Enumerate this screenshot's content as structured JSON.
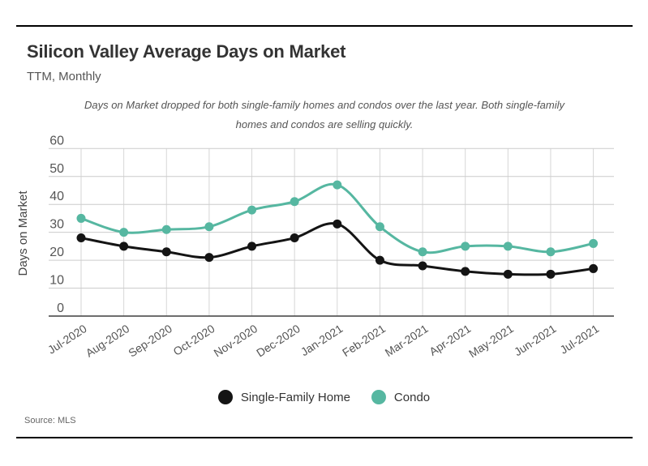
{
  "header": {
    "title": "Silicon Valley Average Days on Market",
    "subtitle": "TTM, Monthly"
  },
  "annotation": {
    "lines": [
      "Days on Market dropped for both single-family homes and condos over the last year. Both single-family",
      "homes and condos are selling quickly."
    ]
  },
  "chart_data": {
    "type": "line",
    "title": "Silicon Valley Average Days on Market",
    "subtitle": "TTM, Monthly",
    "x": [
      "Jul-2020",
      "Aug-2020",
      "Sep-2020",
      "Oct-2020",
      "Nov-2020",
      "Dec-2020",
      "Jan-2021",
      "Feb-2021",
      "Mar-2021",
      "Apr-2021",
      "May-2021",
      "Jun-2021",
      "Jul-2021"
    ],
    "series": [
      {
        "name": "Single-Family Home",
        "color": "#141414",
        "values": [
          28,
          25,
          23,
          21,
          25,
          28,
          33,
          20,
          18,
          16,
          15,
          15,
          17
        ]
      },
      {
        "name": "Condo",
        "color": "#56b7a1",
        "values": [
          35,
          30,
          31,
          32,
          38,
          41,
          47,
          32,
          23,
          25,
          25,
          23,
          26
        ]
      }
    ],
    "xlabel": "",
    "ylabel": "Days on Market",
    "ylim": [
      0,
      60
    ],
    "yticks": [
      0,
      10,
      20,
      30,
      40,
      50,
      60
    ],
    "grid": true,
    "legend_position": "bottom"
  },
  "legend": {
    "items": [
      {
        "label": "Single-Family Home",
        "color": "#141414"
      },
      {
        "label": "Condo",
        "color": "#56b7a1"
      }
    ]
  },
  "source": {
    "text": "Source:  MLS"
  },
  "colors": {
    "gridline": "#cccccc",
    "vertical_gridline": "#d6d6d6",
    "axis": "#3f3f3f",
    "tick_label": "#555555",
    "axis_title": "#444444"
  }
}
